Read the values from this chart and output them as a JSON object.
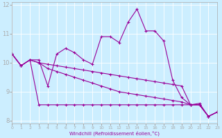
{
  "xlabel": "Windchill (Refroidissement éolien,°C)",
  "bg_color": "#cceeff",
  "grid_color": "#ffffff",
  "line_color": "#990099",
  "xlim": [
    0,
    23
  ],
  "ylim": [
    7.9,
    12.1
  ],
  "yticks": [
    8,
    9,
    10,
    11,
    12
  ],
  "xticks": [
    0,
    1,
    2,
    3,
    4,
    5,
    6,
    7,
    8,
    9,
    10,
    11,
    12,
    13,
    14,
    15,
    16,
    17,
    18,
    19,
    20,
    21,
    22,
    23
  ],
  "series": [
    {
      "x": [
        0,
        1,
        2,
        3,
        4,
        5,
        6,
        7,
        8,
        9,
        10,
        11,
        12,
        13,
        14,
        15,
        16,
        17,
        18,
        19,
        20,
        21,
        22,
        23
      ],
      "y": [
        10.3,
        9.9,
        10.1,
        10.1,
        9.2,
        10.3,
        10.5,
        10.35,
        10.1,
        9.95,
        10.9,
        10.9,
        10.7,
        11.4,
        11.85,
        11.1,
        11.1,
        10.75,
        9.4,
        8.8,
        8.55,
        8.6,
        8.15,
        8.3
      ]
    },
    {
      "x": [
        0,
        1,
        2,
        3,
        4,
        5,
        6,
        7,
        8,
        9,
        10,
        11,
        12,
        13,
        14,
        15,
        16,
        17,
        18,
        19,
        20,
        21,
        22,
        23
      ],
      "y": [
        10.3,
        9.9,
        10.1,
        8.55,
        8.55,
        8.55,
        8.55,
        8.55,
        8.55,
        8.55,
        8.55,
        8.55,
        8.55,
        8.55,
        8.55,
        8.55,
        8.55,
        8.55,
        8.55,
        8.55,
        8.55,
        8.55,
        8.15,
        8.3
      ]
    },
    {
      "x": [
        0,
        1,
        2,
        3,
        4,
        5,
        6,
        7,
        8,
        9,
        10,
        11,
        12,
        13,
        14,
        15,
        16,
        17,
        18,
        19,
        20,
        21,
        22,
        23
      ],
      "y": [
        10.3,
        9.9,
        10.1,
        10.0,
        9.95,
        9.9,
        9.85,
        9.8,
        9.75,
        9.7,
        9.65,
        9.6,
        9.55,
        9.5,
        9.45,
        9.4,
        9.35,
        9.3,
        9.25,
        9.2,
        8.55,
        8.55,
        8.15,
        8.3
      ]
    },
    {
      "x": [
        0,
        1,
        2,
        3,
        4,
        5,
        6,
        7,
        8,
        9,
        10,
        11,
        12,
        13,
        14,
        15,
        16,
        17,
        18,
        19,
        20,
        21,
        22,
        23
      ],
      "y": [
        10.3,
        9.9,
        10.1,
        10.0,
        9.8,
        9.7,
        9.6,
        9.5,
        9.4,
        9.3,
        9.2,
        9.1,
        9.0,
        8.95,
        8.9,
        8.85,
        8.8,
        8.75,
        8.7,
        8.65,
        8.55,
        8.55,
        8.15,
        8.3
      ]
    }
  ]
}
